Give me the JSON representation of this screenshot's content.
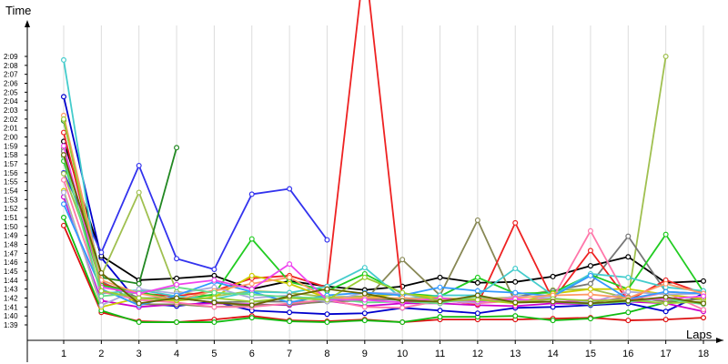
{
  "chart_data": {
    "type": "line",
    "xlabel": "Laps",
    "ylabel": "Time",
    "x": [
      1,
      2,
      3,
      4,
      5,
      6,
      7,
      8,
      9,
      10,
      11,
      12,
      13,
      14,
      15,
      16,
      17,
      18
    ],
    "y_unit": "seconds",
    "ylim": [
      99,
      129
    ],
    "xlim": [
      0,
      18
    ],
    "y_ticks": [
      "1:39",
      "1:40",
      "1:41",
      "1:42",
      "1:43",
      "1:44",
      "1:45",
      "1:46",
      "1:47",
      "1:48",
      "1:49",
      "1:50",
      "1:51",
      "1:52",
      "1:53",
      "1:54",
      "1:55",
      "1:56",
      "1:57",
      "1:58",
      "1:59",
      "2:00",
      "2:01",
      "2:02",
      "2:03",
      "2:04",
      "2:05",
      "2:06",
      "2:07",
      "2:08",
      "2:09"
    ],
    "x_ticks": [
      "1",
      "2",
      "3",
      "4",
      "5",
      "6",
      "7",
      "8",
      "9",
      "10",
      "11",
      "12",
      "13",
      "14",
      "15",
      "16",
      "17",
      "18"
    ],
    "grid": true,
    "series": [
      {
        "color": "#dd1111",
        "values": [
          110.1,
          100.4,
          99.4,
          99.3,
          99.6,
          100.0,
          99.5,
          99.4,
          99.6,
          99.3,
          99.6,
          99.6,
          99.6,
          99.7,
          99.8,
          99.5,
          99.6,
          99.8
        ]
      },
      {
        "color": "#11bb11",
        "values": [
          111.0,
          100.6,
          99.3,
          99.3,
          99.3,
          99.8,
          99.4,
          99.3,
          99.5,
          99.3,
          99.9,
          99.9,
          100.0,
          99.5,
          99.7,
          100.4,
          101.5,
          102.0
        ]
      },
      {
        "color": "#0000cc",
        "values": [
          124.5,
          106.5,
          101.4,
          101.1,
          101.6,
          100.6,
          100.4,
          100.2,
          100.3,
          100.9,
          100.6,
          100.3,
          100.9,
          101.0,
          101.2,
          101.4,
          100.5,
          102.5
        ]
      },
      {
        "color": "#cc00cc",
        "values": [
          113.3,
          101.7,
          101.0,
          101.3,
          101.4,
          101.3,
          101.2,
          101.7,
          101.1,
          101.4,
          101.4,
          101.2,
          101.1,
          101.4,
          101.3,
          101.6,
          101.4,
          100.5
        ]
      },
      {
        "color": "#000000",
        "values": [
          119.5,
          106.7,
          104.0,
          104.2,
          104.5,
          103.0,
          103.9,
          103.3,
          102.9,
          103.3,
          104.3,
          103.7,
          103.8,
          104.4,
          105.6,
          106.6,
          103.7,
          103.9
        ]
      },
      {
        "color": "#3333ee",
        "values": [
          116.0,
          107.1,
          116.8,
          106.4,
          105.2,
          113.6,
          114.2,
          108.5,
          null,
          null,
          null,
          null,
          null,
          null,
          null,
          null,
          null,
          null
        ]
      },
      {
        "color": "#a0c050",
        "values": [
          115.9,
          104.5,
          113.8,
          102.7,
          102.2,
          102.8,
          102.6,
          102.1,
          102.2,
          102.5,
          101.7,
          101.9,
          102.1,
          102.9,
          103.0,
          102.0,
          129.0,
          null
        ]
      },
      {
        "color": "#228822",
        "values": [
          121.8,
          104.3,
          103.6,
          118.8,
          null,
          null,
          null,
          null,
          null,
          null,
          null,
          null,
          null,
          null,
          null,
          null,
          null,
          null
        ]
      },
      {
        "color": "#888855",
        "values": [
          118.7,
          103.9,
          101.3,
          101.3,
          101.0,
          101.2,
          101.3,
          101.6,
          101.7,
          106.3,
          102.3,
          110.7,
          101.5,
          101.6,
          101.5,
          102.1,
          101.6,
          101.9
        ]
      },
      {
        "color": "#777777",
        "values": [
          118.4,
          103.8,
          102.0,
          102.0,
          101.5,
          101.6,
          101.6,
          101.6,
          101.9,
          101.8,
          101.9,
          101.6,
          102.1,
          102.8,
          103.6,
          108.9,
          102.7,
          102.5
        ]
      },
      {
        "color": "#ee2222",
        "values": [
          120.5,
          103.6,
          102.5,
          102.2,
          102.8,
          104.2,
          104.5,
          103.2,
          140.0,
          102.0,
          101.8,
          101.3,
          110.4,
          101.8,
          107.3,
          101.7,
          104.0,
          102.5
        ]
      },
      {
        "color": "#22cc22",
        "values": [
          117.3,
          103.4,
          102.7,
          101.8,
          102.4,
          108.6,
          103.8,
          102.8,
          104.7,
          102.5,
          102.2,
          104.3,
          102.5,
          102.6,
          104.6,
          103.0,
          109.1,
          102.7
        ]
      },
      {
        "color": "#44cccc",
        "values": [
          128.6,
          102.5,
          102.9,
          102.2,
          101.9,
          102.7,
          102.6,
          103.3,
          105.4,
          101.9,
          102.3,
          102.3,
          105.3,
          102.3,
          104.7,
          104.3,
          103.2,
          102.8
        ]
      },
      {
        "color": "#ff77aa",
        "values": [
          115.2,
          102.7,
          101.8,
          101.5,
          101.0,
          101.0,
          101.4,
          101.8,
          101.0,
          100.9,
          101.7,
          101.4,
          101.7,
          102.0,
          109.5,
          101.8,
          102.6,
          100.7
        ]
      },
      {
        "color": "#cccc00",
        "values": [
          114.0,
          101.0,
          102.0,
          101.7,
          102.1,
          104.5,
          103.6,
          102.0,
          102.0,
          102.5,
          102.0,
          101.8,
          101.4,
          102.5,
          103.0,
          103.0,
          102.4,
          101.9
        ]
      },
      {
        "color": "#aaaadd",
        "values": [
          113.8,
          101.2,
          103.0,
          102.5,
          103.2,
          102.0,
          102.3,
          101.6,
          102.6,
          102.5,
          101.7,
          101.5,
          102.2,
          102.0,
          101.5,
          102.7,
          102.4,
          102.5
        ]
      },
      {
        "color": "#3399ff",
        "values": [
          112.5,
          103.0,
          101.2,
          102.3,
          103.8,
          102.7,
          101.5,
          102.3,
          102.6,
          102.3,
          103.2,
          102.8,
          102.6,
          102.2,
          104.5,
          101.9,
          102.7,
          102.5
        ]
      },
      {
        "color": "#ff9966",
        "values": [
          122.4,
          104.0,
          102.5,
          101.8,
          102.8,
          103.6,
          104.3,
          102.0,
          102.0,
          102.0,
          101.8,
          101.8,
          102.0,
          102.3,
          102.4,
          102.0,
          103.6,
          102.5
        ]
      },
      {
        "color": "#66dd88",
        "values": [
          117.8,
          102.2,
          102.6,
          103.2,
          102.6,
          102.4,
          102.1,
          102.0,
          101.5,
          101.6,
          101.4,
          102.2,
          101.6,
          101.6,
          101.3,
          101.6,
          101.9,
          101.3
        ]
      },
      {
        "color": "#ee44ee",
        "values": [
          119.0,
          103.2,
          102.5,
          103.5,
          104.0,
          103.0,
          105.8,
          101.8,
          101.8,
          101.5,
          102.0,
          101.6,
          101.9,
          101.5,
          101.8,
          101.8,
          101.9,
          102.2
        ]
      },
      {
        "color": "#99cc33",
        "values": [
          122.0,
          102.8,
          102.0,
          101.8,
          102.0,
          101.6,
          102.0,
          101.8,
          104.3,
          102.6,
          101.7,
          101.8,
          101.5,
          101.9,
          101.7,
          101.8,
          101.4,
          101.6
        ]
      },
      {
        "color": "#666600",
        "values": [
          118.0,
          104.8,
          101.4,
          102.0,
          101.5,
          101.2,
          102.2,
          103.0,
          102.5,
          101.7,
          101.6,
          102.3,
          101.5,
          101.6,
          101.4,
          101.7,
          102.1,
          101.4
        ]
      }
    ]
  }
}
